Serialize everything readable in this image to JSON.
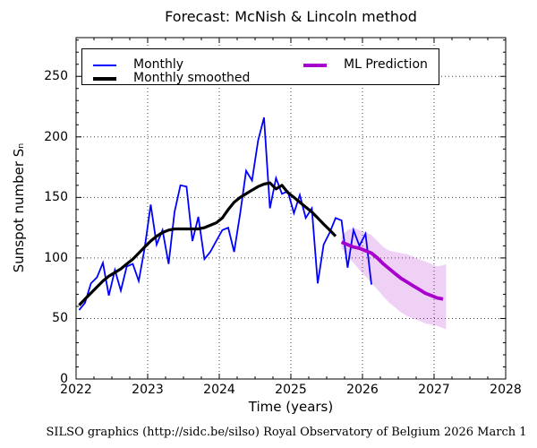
{
  "title": "Forecast: McNish & Lincoln method",
  "footer": "SILSO graphics (http://sidc.be/silso)  Royal Observatory of Belgium  2026 March 1",
  "legend": {
    "monthly": "Monthly",
    "smoothed": "Monthly smoothed",
    "prediction": "ML Prediction"
  },
  "colors": {
    "monthly": "#0000ff",
    "smoothed": "#000000",
    "prediction": "#a800cc",
    "band": "#a800cc",
    "frame": "#000000",
    "grid": "#000000",
    "background": "#ffffff"
  },
  "chart_data": {
    "type": "line",
    "title": "Forecast: McNish & Lincoln method",
    "xlabel": "Time (years)",
    "ylabel": "Sunspot number Sₙ",
    "xlim": [
      2022,
      2028
    ],
    "ylim": [
      0,
      282
    ],
    "xticks": [
      2022,
      2023,
      2024,
      2025,
      2026,
      2027,
      2028
    ],
    "yticks": [
      0,
      50,
      100,
      150,
      200,
      250
    ],
    "x_minor_step": 0.25,
    "y_minor_step": 10,
    "grid": true,
    "grid_style": "dotted",
    "legend_position": "upper left",
    "series": [
      {
        "name": "Monthly",
        "color": "#0000ff",
        "width": 1.8,
        "points": [
          [
            2022.042,
            57
          ],
          [
            2022.125,
            63
          ],
          [
            2022.208,
            79
          ],
          [
            2022.292,
            84
          ],
          [
            2022.375,
            96
          ],
          [
            2022.458,
            69
          ],
          [
            2022.542,
            90
          ],
          [
            2022.625,
            73
          ],
          [
            2022.708,
            93
          ],
          [
            2022.792,
            95
          ],
          [
            2022.875,
            81
          ],
          [
            2022.958,
            108
          ],
          [
            2023.042,
            144
          ],
          [
            2023.125,
            111
          ],
          [
            2023.208,
            123
          ],
          [
            2023.292,
            95
          ],
          [
            2023.375,
            138
          ],
          [
            2023.458,
            160
          ],
          [
            2023.542,
            159
          ],
          [
            2023.625,
            114
          ],
          [
            2023.708,
            134
          ],
          [
            2023.792,
            99
          ],
          [
            2023.875,
            105
          ],
          [
            2023.958,
            114
          ],
          [
            2024.042,
            123
          ],
          [
            2024.125,
            125
          ],
          [
            2024.208,
            105
          ],
          [
            2024.292,
            137
          ],
          [
            2024.375,
            172
          ],
          [
            2024.458,
            164
          ],
          [
            2024.542,
            197
          ],
          [
            2024.625,
            216
          ],
          [
            2024.708,
            141
          ],
          [
            2024.792,
            166
          ],
          [
            2024.875,
            153
          ],
          [
            2024.958,
            155
          ],
          [
            2025.042,
            137
          ],
          [
            2025.125,
            152
          ],
          [
            2025.208,
            133
          ],
          [
            2025.292,
            141
          ],
          [
            2025.375,
            79
          ],
          [
            2025.458,
            111
          ],
          [
            2025.542,
            121
          ],
          [
            2025.625,
            133
          ],
          [
            2025.708,
            131
          ],
          [
            2025.792,
            92
          ],
          [
            2025.875,
            123
          ],
          [
            2025.958,
            110
          ],
          [
            2026.042,
            120
          ],
          [
            2026.125,
            78
          ]
        ]
      },
      {
        "name": "Monthly smoothed",
        "color": "#000000",
        "width": 3.2,
        "points": [
          [
            2022.042,
            61
          ],
          [
            2022.125,
            66
          ],
          [
            2022.208,
            71
          ],
          [
            2022.292,
            76
          ],
          [
            2022.375,
            81
          ],
          [
            2022.458,
            85
          ],
          [
            2022.542,
            88
          ],
          [
            2022.625,
            91
          ],
          [
            2022.708,
            95
          ],
          [
            2022.792,
            99
          ],
          [
            2022.875,
            104
          ],
          [
            2022.958,
            109
          ],
          [
            2023.042,
            114
          ],
          [
            2023.125,
            118
          ],
          [
            2023.208,
            121
          ],
          [
            2023.292,
            123
          ],
          [
            2023.375,
            124
          ],
          [
            2023.458,
            124
          ],
          [
            2023.542,
            124
          ],
          [
            2023.625,
            124
          ],
          [
            2023.708,
            124
          ],
          [
            2023.792,
            125
          ],
          [
            2023.875,
            127
          ],
          [
            2023.958,
            129
          ],
          [
            2024.042,
            133
          ],
          [
            2024.125,
            140
          ],
          [
            2024.208,
            146
          ],
          [
            2024.292,
            150
          ],
          [
            2024.375,
            153
          ],
          [
            2024.458,
            156
          ],
          [
            2024.542,
            159
          ],
          [
            2024.625,
            161
          ],
          [
            2024.708,
            162
          ],
          [
            2024.792,
            157
          ],
          [
            2024.875,
            160
          ],
          [
            2024.958,
            154
          ],
          [
            2025.042,
            150
          ],
          [
            2025.125,
            146
          ],
          [
            2025.208,
            142
          ],
          [
            2025.292,
            138
          ],
          [
            2025.375,
            133
          ],
          [
            2025.458,
            128
          ],
          [
            2025.542,
            123
          ],
          [
            2025.625,
            118
          ]
        ]
      },
      {
        "name": "ML Prediction",
        "color": "#a800cc",
        "width": 3.8,
        "points": [
          [
            2025.708,
            113
          ],
          [
            2025.792,
            111
          ],
          [
            2025.875,
            109
          ],
          [
            2025.958,
            108
          ],
          [
            2026.042,
            106
          ],
          [
            2026.125,
            104
          ],
          [
            2026.208,
            100
          ],
          [
            2026.292,
            95
          ],
          [
            2026.375,
            91
          ],
          [
            2026.458,
            87
          ],
          [
            2026.542,
            83
          ],
          [
            2026.625,
            80
          ],
          [
            2026.708,
            77
          ],
          [
            2026.792,
            74
          ],
          [
            2026.875,
            71
          ],
          [
            2026.958,
            69
          ],
          [
            2027.042,
            67
          ],
          [
            2027.125,
            66
          ]
        ]
      }
    ],
    "band": {
      "name": "prediction uncertainty",
      "color": "#a800cc",
      "opacity": 0.18,
      "upper": [
        [
          2025.708,
          118
        ],
        [
          2025.792,
          123
        ],
        [
          2025.875,
          125
        ],
        [
          2025.958,
          123
        ],
        [
          2026.042,
          121
        ],
        [
          2026.125,
          119
        ],
        [
          2026.208,
          114
        ],
        [
          2026.292,
          109
        ],
        [
          2026.375,
          106
        ],
        [
          2026.458,
          105
        ],
        [
          2026.542,
          104
        ],
        [
          2026.625,
          103
        ],
        [
          2026.708,
          101
        ],
        [
          2026.792,
          99
        ],
        [
          2026.875,
          97
        ],
        [
          2026.958,
          95
        ],
        [
          2027.042,
          93
        ],
        [
          2027.125,
          94
        ],
        [
          2027.167,
          95
        ]
      ],
      "lower": [
        [
          2025.708,
          108
        ],
        [
          2025.792,
          101
        ],
        [
          2025.875,
          96
        ],
        [
          2025.958,
          90
        ],
        [
          2026.042,
          85
        ],
        [
          2026.125,
          79
        ],
        [
          2026.208,
          74
        ],
        [
          2026.292,
          68
        ],
        [
          2026.375,
          63
        ],
        [
          2026.458,
          59
        ],
        [
          2026.542,
          55
        ],
        [
          2026.625,
          52
        ],
        [
          2026.708,
          50
        ],
        [
          2026.792,
          48
        ],
        [
          2026.875,
          46
        ],
        [
          2026.958,
          45
        ],
        [
          2027.042,
          44
        ],
        [
          2027.125,
          42
        ],
        [
          2027.167,
          41
        ]
      ]
    }
  }
}
